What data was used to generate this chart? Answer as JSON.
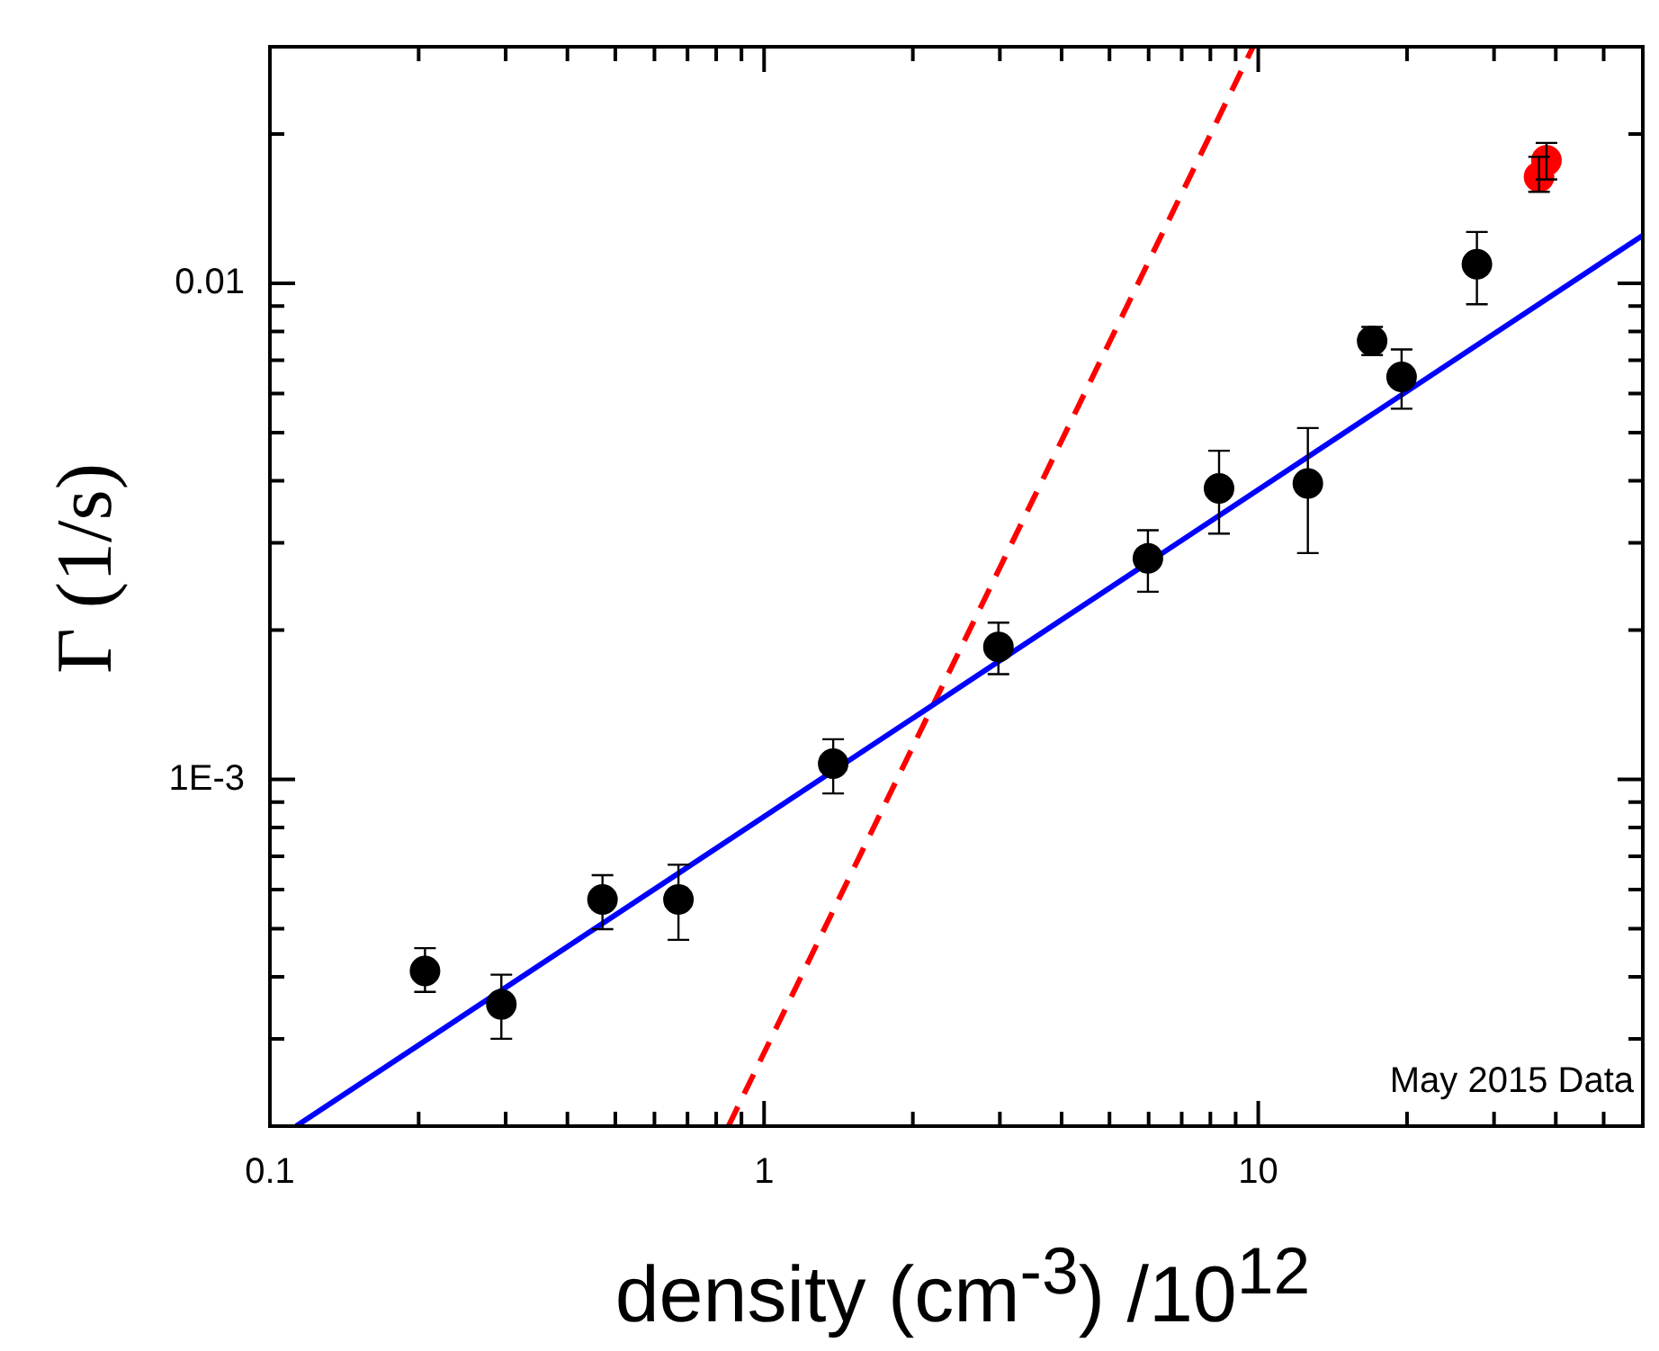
{
  "chart_data": {
    "type": "scatter",
    "xlabel": "density (cm$^{-3}$) /10$^{12}$",
    "ylabel": "Γ  (1/s)",
    "log": "xy",
    "grid": false,
    "legend": false,
    "xlim": [
      0.1,
      60
    ],
    "ylim": [
      0.0002,
      0.03
    ],
    "xticks": [
      0.1,
      {
        "value": 0.2,
        "label": null
      },
      {
        "value": 0.3,
        "label": null
      },
      {
        "value": 0.4,
        "label": null
      },
      {
        "value": 0.5,
        "label": null
      },
      {
        "value": 0.6,
        "label": null
      },
      {
        "value": 0.7,
        "label": null
      },
      {
        "value": 0.8,
        "label": null
      },
      {
        "value": 0.9,
        "label": null
      },
      1,
      {
        "value": 2,
        "label": null
      },
      {
        "value": 3,
        "label": null
      },
      {
        "value": 4,
        "label": null
      },
      {
        "value": 5,
        "label": null
      },
      {
        "value": 6,
        "label": null
      },
      {
        "value": 7,
        "label": null
      },
      {
        "value": 8,
        "label": null
      },
      {
        "value": 9,
        "label": null
      },
      10,
      {
        "value": 20,
        "label": null
      },
      {
        "value": 30,
        "label": null
      },
      {
        "value": 40,
        "label": null
      },
      {
        "value": 50,
        "label": null
      }
    ],
    "yticks": [
      {
        "value": 0.0002,
        "label": null
      },
      {
        "value": 0.0003,
        "label": null
      },
      {
        "value": 0.0004,
        "label": null
      },
      {
        "value": 0.0005,
        "label": null
      },
      {
        "value": 0.0006,
        "label": null
      },
      {
        "value": 0.0007,
        "label": null
      },
      {
        "value": 0.0008,
        "label": null
      },
      {
        "value": 0.0009,
        "label": null
      },
      {
        "value": 0.001,
        "label": "1E-3"
      },
      {
        "value": 0.002,
        "label": null
      },
      {
        "value": 0.003,
        "label": null
      },
      {
        "value": 0.004,
        "label": null
      },
      {
        "value": 0.005,
        "label": null
      },
      {
        "value": 0.006,
        "label": null
      },
      {
        "value": 0.007,
        "label": null
      },
      {
        "value": 0.008,
        "label": null
      },
      {
        "value": 0.009,
        "label": null
      },
      0.01,
      {
        "value": 0.02,
        "label": null
      }
    ],
    "annotations": [
      "May 2015 Data"
    ],
    "series": [
      {
        "marker": "circle",
        "color": "#000000",
        "x": [
          0.206,
          0.294,
          0.471,
          0.671,
          1.38,
          2.98,
          5.98,
          8.33,
          12.6,
          17.0,
          19.5,
          27.7
        ],
        "values": [
          0.000411,
          0.000352,
          0.000573,
          0.000573,
          0.001076,
          0.00185,
          0.00279,
          0.00386,
          0.00395,
          0.00766,
          0.00648,
          0.01093
        ],
        "errors": [
          [
            0.000373,
            0.000457
          ],
          [
            0.0003,
            0.000404
          ],
          [
            0.000499,
            0.000641
          ],
          [
            0.000475,
            0.000673
          ],
          [
            0.000937,
            0.001205
          ],
          [
            0.00163,
            0.00207
          ],
          [
            0.00239,
            0.00318
          ],
          [
            0.00313,
            0.0046
          ],
          [
            0.00286,
            0.00511
          ],
          [
            0.00717,
            0.00817
          ],
          [
            0.00559,
            0.00736
          ],
          [
            0.00908,
            0.0127
          ]
        ]
      },
      {
        "marker": "circle",
        "color": "#ff0000",
        "x": [
          37.0,
          38.3
        ],
        "values": [
          0.0164,
          0.0177
        ],
        "errors": [
          [
            0.0153,
            0.018
          ],
          [
            0.0162,
            0.0192
          ]
        ]
      },
      {
        "type": "line",
        "marker": "none",
        "line_style": "solid",
        "color": "#0000ff",
        "x": [
          0.113,
          60
        ],
        "values": [
          0.0002,
          0.0125
        ]
      },
      {
        "type": "line",
        "marker": "none",
        "line_style": "dashed",
        "color": "#ff0000",
        "x": [
          0.847,
          9.76
        ],
        "values": [
          0.0002,
          0.03
        ]
      }
    ]
  }
}
